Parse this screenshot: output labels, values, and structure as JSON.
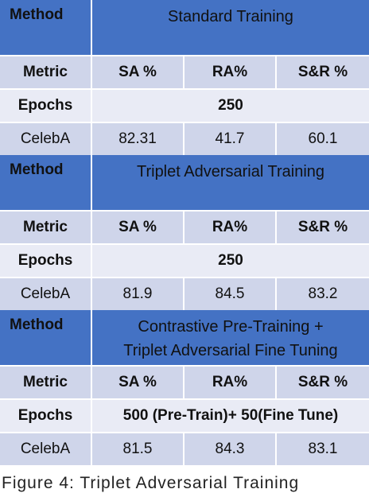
{
  "sections": [
    {
      "method_label": "Method",
      "title_lines": [
        "Standard Training"
      ],
      "metric_label": "Metric",
      "columns": [
        "SA %",
        "RA%",
        "S&R %"
      ],
      "epochs_label": "Epochs",
      "epochs_value": "250",
      "row_label": "CelebA",
      "values": [
        "82.31",
        "41.7",
        "60.1"
      ]
    },
    {
      "method_label": "Method",
      "title_lines": [
        "Triplet Adversarial Training"
      ],
      "metric_label": "Metric",
      "columns": [
        "SA %",
        "RA%",
        "S&R %"
      ],
      "epochs_label": "Epochs",
      "epochs_value": "250",
      "row_label": "CelebA",
      "values": [
        "81.9",
        "84.5",
        "83.2"
      ]
    },
    {
      "method_label": "Method",
      "title_lines": [
        "Contrastive Pre-Training +",
        "Triplet Adversarial Fine Tuning"
      ],
      "metric_label": "Metric",
      "columns": [
        "SA %",
        "RA%",
        "S&R %"
      ],
      "epochs_label": "Epochs",
      "epochs_value": "500 (Pre-Train)+ 50(Fine Tune)",
      "row_label": "CelebA",
      "values": [
        "81.5",
        "84.3",
        "83.1"
      ]
    }
  ],
  "caption": "Figure 4: Triplet Adversarial Training"
}
